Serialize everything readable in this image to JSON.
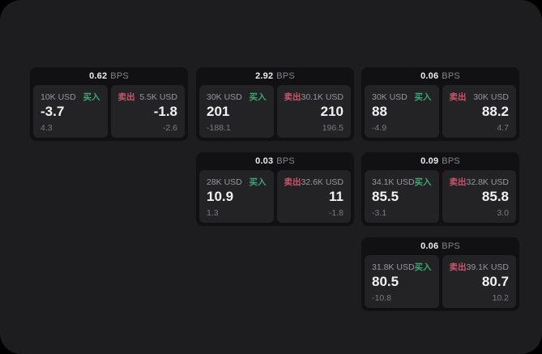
{
  "page": {
    "outside_background": "#000000",
    "surface_background": "#1d1d1f"
  },
  "labels": {
    "buy": "买入",
    "sell": "卖出",
    "unit": "BPS"
  },
  "colors": {
    "buy_green": "#3da673",
    "sell_red": "#c9566c",
    "card_bg": "#111113",
    "panel_bg": "#232326"
  },
  "cards": [
    {
      "spread": "0.62",
      "col": 0,
      "row": 0,
      "buy": {
        "size": "10K USD",
        "price": "-3.7",
        "sub": "4.3"
      },
      "sell": {
        "size": "5.5K USD",
        "price": "-1.8",
        "sub": "-2.6"
      }
    },
    {
      "spread": "2.92",
      "col": 1,
      "row": 0,
      "buy": {
        "size": "30K USD",
        "price": "201",
        "sub": "-188.1"
      },
      "sell": {
        "size": "30.1K USD",
        "price": "210",
        "sub": "196.5"
      }
    },
    {
      "spread": "0.06",
      "col": 2,
      "row": 0,
      "buy": {
        "size": "30K USD",
        "price": "88",
        "sub": "-4.9"
      },
      "sell": {
        "size": "30K USD",
        "price": "88.2",
        "sub": "4.7"
      }
    },
    {
      "spread": "0.03",
      "col": 1,
      "row": 1,
      "buy": {
        "size": "28K USD",
        "price": "10.9",
        "sub": "1.3"
      },
      "sell": {
        "size": "32.6K USD",
        "price": "11",
        "sub": "-1.8"
      }
    },
    {
      "spread": "0.09",
      "col": 2,
      "row": 1,
      "buy": {
        "size": "34.1K USD",
        "price": "85.5",
        "sub": "-3.1"
      },
      "sell": {
        "size": "32.8K USD",
        "price": "85.8",
        "sub": "3.0"
      }
    },
    {
      "spread": "0.06",
      "col": 2,
      "row": 2,
      "buy": {
        "size": "31.8K USD",
        "price": "80.5",
        "sub": "-10.8"
      },
      "sell": {
        "size": "39.1K USD",
        "price": "80.7",
        "sub": "10.2"
      }
    }
  ]
}
